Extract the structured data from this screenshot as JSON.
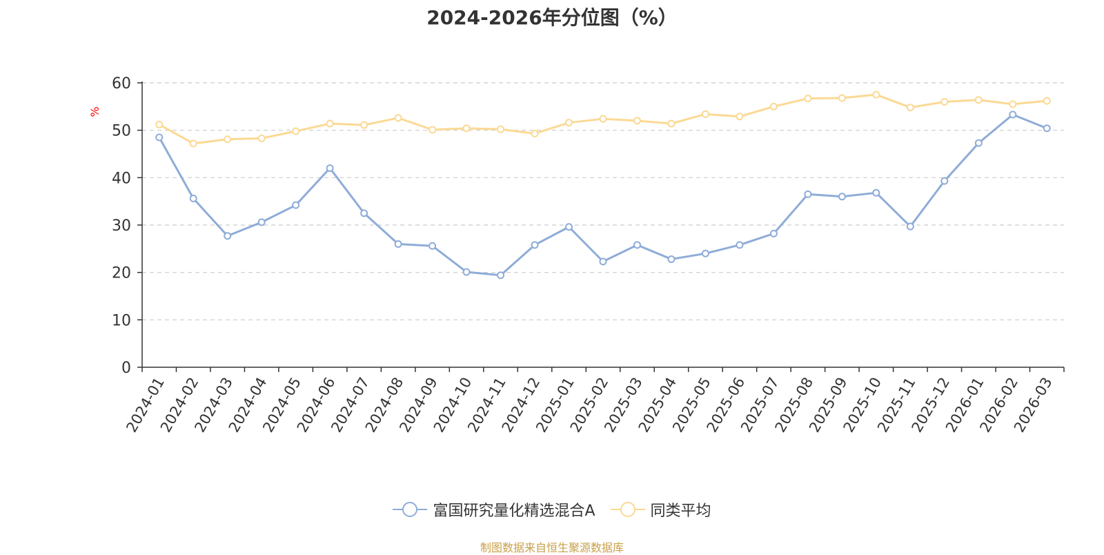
{
  "chart_data": {
    "type": "line",
    "title": "2024-2026年分位图（%）",
    "ylabel": "%",
    "ylim": [
      0,
      60
    ],
    "yticks": [
      0,
      10,
      20,
      30,
      40,
      50,
      60
    ],
    "grid": true,
    "legend_position": "bottom",
    "categories": [
      "2024-01",
      "2024-02",
      "2024-03",
      "2024-04",
      "2024-05",
      "2024-06",
      "2024-07",
      "2024-08",
      "2024-09",
      "2024-10",
      "2024-11",
      "2024-12",
      "2025-01",
      "2025-02",
      "2025-03",
      "2025-04",
      "2025-05",
      "2025-06",
      "2025-07",
      "2025-08",
      "2025-09",
      "2025-10",
      "2025-11",
      "2025-12",
      "2026-01",
      "2026-02",
      "2026-03"
    ],
    "series": [
      {
        "name": "富国研究量化精选混合A",
        "color": "#8eacd8",
        "values": [
          48.5,
          35.6,
          27.7,
          30.6,
          34.2,
          42.0,
          32.5,
          26.0,
          25.6,
          20.1,
          19.4,
          25.8,
          29.6,
          22.3,
          25.8,
          22.8,
          24.0,
          25.8,
          28.2,
          36.5,
          36.0,
          36.8,
          29.7,
          39.3,
          47.3,
          53.3,
          50.4
        ]
      },
      {
        "name": "同类平均",
        "color": "#fbd994",
        "values": [
          51.2,
          47.2,
          48.1,
          48.3,
          49.8,
          51.4,
          51.1,
          52.6,
          50.1,
          50.4,
          50.2,
          49.3,
          51.6,
          52.4,
          52.0,
          51.4,
          53.4,
          52.9,
          55.0,
          56.7,
          56.8,
          57.5,
          54.8,
          56.0,
          56.4,
          55.5,
          56.2
        ]
      }
    ]
  },
  "footer": {
    "source": "制图数据来自恒生聚源数据库"
  },
  "colors": {
    "axis": "#333333",
    "grid": "#cccccc",
    "ylabel": "#ff0000",
    "source": "#c8a04a"
  }
}
